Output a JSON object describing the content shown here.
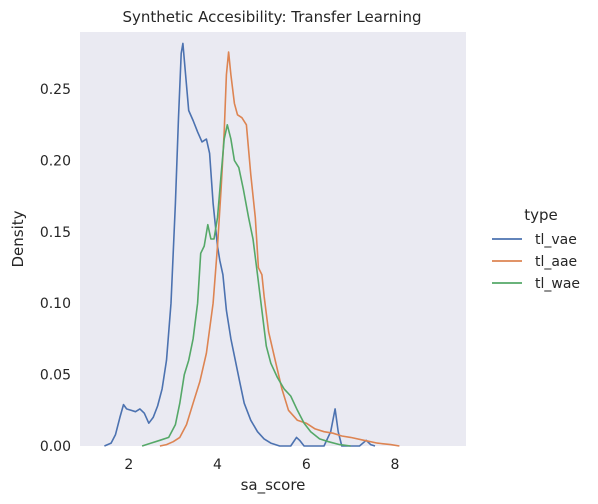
{
  "chart_data": {
    "type": "line",
    "title": "Synthetic Accesibility: Transfer Learning",
    "xlabel": "sa_score",
    "ylabel": "Density",
    "xlim": [
      0.9,
      9.6
    ],
    "ylim": [
      0,
      0.29
    ],
    "xticks": [
      2,
      4,
      6,
      8
    ],
    "xtick_labels": [
      "2",
      "4",
      "6",
      "8"
    ],
    "yticks": [
      0.0,
      0.05,
      0.1,
      0.15,
      0.2,
      0.25
    ],
    "ytick_labels": [
      "0.00",
      "0.05",
      "0.10",
      "0.15",
      "0.20",
      "0.25"
    ],
    "grid": false,
    "legend": {
      "title": "type",
      "placement": "right"
    },
    "series": [
      {
        "name": "tl_vae",
        "color": "#4c72b0",
        "points": [
          [
            1.45,
            0.0
          ],
          [
            1.6,
            0.002
          ],
          [
            1.7,
            0.008
          ],
          [
            1.8,
            0.02
          ],
          [
            1.88,
            0.029
          ],
          [
            1.95,
            0.026
          ],
          [
            2.05,
            0.025
          ],
          [
            2.15,
            0.024
          ],
          [
            2.25,
            0.026
          ],
          [
            2.35,
            0.023
          ],
          [
            2.45,
            0.016
          ],
          [
            2.55,
            0.02
          ],
          [
            2.65,
            0.028
          ],
          [
            2.75,
            0.04
          ],
          [
            2.85,
            0.06
          ],
          [
            2.95,
            0.1
          ],
          [
            3.05,
            0.17
          ],
          [
            3.12,
            0.23
          ],
          [
            3.18,
            0.275
          ],
          [
            3.22,
            0.282
          ],
          [
            3.28,
            0.26
          ],
          [
            3.35,
            0.235
          ],
          [
            3.45,
            0.228
          ],
          [
            3.55,
            0.22
          ],
          [
            3.65,
            0.213
          ],
          [
            3.75,
            0.215
          ],
          [
            3.82,
            0.205
          ],
          [
            3.9,
            0.17
          ],
          [
            4.0,
            0.14
          ],
          [
            4.05,
            0.13
          ],
          [
            4.12,
            0.12
          ],
          [
            4.2,
            0.095
          ],
          [
            4.3,
            0.075
          ],
          [
            4.4,
            0.06
          ],
          [
            4.5,
            0.045
          ],
          [
            4.6,
            0.03
          ],
          [
            4.75,
            0.018
          ],
          [
            4.9,
            0.01
          ],
          [
            5.05,
            0.005
          ],
          [
            5.2,
            0.002
          ],
          [
            5.4,
            0.0
          ],
          [
            5.65,
            0.0
          ],
          [
            5.78,
            0.006
          ],
          [
            5.85,
            0.004
          ],
          [
            5.95,
            0.0
          ],
          [
            6.4,
            0.0
          ],
          [
            6.55,
            0.01
          ],
          [
            6.65,
            0.026
          ],
          [
            6.72,
            0.01
          ],
          [
            6.8,
            0.0
          ],
          [
            7.2,
            0.0
          ],
          [
            7.35,
            0.004
          ],
          [
            7.45,
            0.001
          ],
          [
            7.55,
            0.0
          ]
        ]
      },
      {
        "name": "tl_aae",
        "color": "#dd8452",
        "points": [
          [
            2.7,
            0.0
          ],
          [
            2.85,
            0.001
          ],
          [
            3.0,
            0.003
          ],
          [
            3.15,
            0.006
          ],
          [
            3.3,
            0.015
          ],
          [
            3.45,
            0.03
          ],
          [
            3.6,
            0.045
          ],
          [
            3.75,
            0.065
          ],
          [
            3.9,
            0.1
          ],
          [
            4.0,
            0.14
          ],
          [
            4.08,
            0.18
          ],
          [
            4.15,
            0.22
          ],
          [
            4.2,
            0.26
          ],
          [
            4.25,
            0.276
          ],
          [
            4.3,
            0.26
          ],
          [
            4.38,
            0.24
          ],
          [
            4.45,
            0.232
          ],
          [
            4.55,
            0.23
          ],
          [
            4.65,
            0.225
          ],
          [
            4.75,
            0.19
          ],
          [
            4.85,
            0.16
          ],
          [
            4.92,
            0.125
          ],
          [
            5.0,
            0.12
          ],
          [
            5.05,
            0.105
          ],
          [
            5.15,
            0.08
          ],
          [
            5.3,
            0.06
          ],
          [
            5.45,
            0.04
          ],
          [
            5.6,
            0.025
          ],
          [
            5.8,
            0.018
          ],
          [
            6.0,
            0.016
          ],
          [
            6.2,
            0.012
          ],
          [
            6.4,
            0.01
          ],
          [
            6.6,
            0.009
          ],
          [
            6.8,
            0.007
          ],
          [
            7.0,
            0.006
          ],
          [
            7.3,
            0.004
          ],
          [
            7.6,
            0.002
          ],
          [
            7.9,
            0.001
          ],
          [
            8.1,
            0.0
          ]
        ]
      },
      {
        "name": "tl_wae",
        "color": "#55a868",
        "points": [
          [
            2.3,
            0.0
          ],
          [
            2.5,
            0.002
          ],
          [
            2.7,
            0.004
          ],
          [
            2.9,
            0.006
          ],
          [
            3.05,
            0.015
          ],
          [
            3.15,
            0.03
          ],
          [
            3.25,
            0.05
          ],
          [
            3.35,
            0.06
          ],
          [
            3.45,
            0.075
          ],
          [
            3.55,
            0.1
          ],
          [
            3.62,
            0.135
          ],
          [
            3.7,
            0.14
          ],
          [
            3.78,
            0.155
          ],
          [
            3.85,
            0.145
          ],
          [
            3.92,
            0.145
          ],
          [
            4.0,
            0.16
          ],
          [
            4.08,
            0.19
          ],
          [
            4.15,
            0.215
          ],
          [
            4.22,
            0.225
          ],
          [
            4.3,
            0.215
          ],
          [
            4.38,
            0.2
          ],
          [
            4.48,
            0.195
          ],
          [
            4.58,
            0.18
          ],
          [
            4.7,
            0.16
          ],
          [
            4.8,
            0.145
          ],
          [
            4.9,
            0.12
          ],
          [
            5.0,
            0.095
          ],
          [
            5.1,
            0.07
          ],
          [
            5.2,
            0.058
          ],
          [
            5.35,
            0.048
          ],
          [
            5.5,
            0.04
          ],
          [
            5.65,
            0.035
          ],
          [
            5.8,
            0.025
          ],
          [
            5.95,
            0.016
          ],
          [
            6.1,
            0.01
          ],
          [
            6.3,
            0.005
          ],
          [
            6.5,
            0.003
          ],
          [
            6.75,
            0.001
          ],
          [
            7.0,
            0.0
          ]
        ]
      }
    ]
  }
}
